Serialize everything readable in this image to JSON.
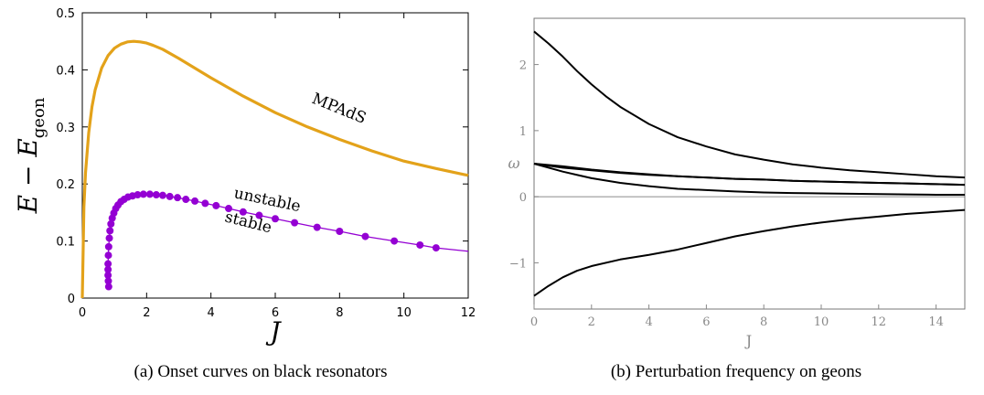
{
  "chart_data": [
    {
      "type": "line",
      "xlabel": "J",
      "ylabel": "E − E_geon",
      "ylabel_main": "E − E",
      "ylabel_sub": "geon",
      "xlim": [
        0,
        12
      ],
      "ylim": [
        0,
        0.5
      ],
      "x_ticks": [
        "0",
        "2",
        "4",
        "6",
        "8",
        "10",
        "12"
      ],
      "y_ticks": [
        "0",
        "0.1",
        "0.2",
        "0.3",
        "0.4",
        "0.5"
      ],
      "grid": false,
      "annotations": [
        "MPAdS",
        "unstable",
        "stable"
      ],
      "colors": {
        "mpads": "#e3a21a",
        "onset": "#9400d3"
      },
      "series": [
        {
          "name": "MPAdS",
          "x": [
            0,
            0.05,
            0.1,
            0.2,
            0.3,
            0.4,
            0.6,
            0.8,
            1.0,
            1.2,
            1.4,
            1.6,
            1.8,
            2.0,
            2.2,
            2.5,
            3.0,
            3.5,
            4.0,
            5.0,
            6.0,
            7.0,
            8.0,
            9.0,
            10.0,
            11.0,
            12.0
          ],
          "y": [
            0,
            0.16,
            0.22,
            0.29,
            0.335,
            0.365,
            0.403,
            0.425,
            0.438,
            0.445,
            0.449,
            0.45,
            0.449,
            0.447,
            0.443,
            0.436,
            0.42,
            0.403,
            0.386,
            0.354,
            0.325,
            0.3,
            0.278,
            0.258,
            0.24,
            0.227,
            0.215
          ]
        },
        {
          "name": "unstable / stable",
          "x": [
            0.82,
            0.81,
            0.8,
            0.8,
            0.8,
            0.81,
            0.82,
            0.84,
            0.86,
            0.89,
            0.93,
            0.98,
            1.04,
            1.11,
            1.2,
            1.3,
            1.42,
            1.56,
            1.72,
            1.9,
            2.1,
            2.3,
            2.5,
            2.72,
            2.96,
            3.22,
            3.5,
            3.82,
            4.16,
            4.55,
            5.0,
            5.5,
            6.0,
            6.6,
            7.3,
            8.0,
            8.8,
            9.7,
            10.5,
            11.0,
            12.0
          ],
          "y": [
            0.02,
            0.03,
            0.04,
            0.05,
            0.06,
            0.075,
            0.09,
            0.105,
            0.118,
            0.13,
            0.14,
            0.149,
            0.157,
            0.163,
            0.169,
            0.173,
            0.177,
            0.179,
            0.181,
            0.182,
            0.182,
            0.181,
            0.18,
            0.178,
            0.176,
            0.173,
            0.17,
            0.166,
            0.162,
            0.157,
            0.151,
            0.145,
            0.139,
            0.132,
            0.124,
            0.117,
            0.108,
            0.1,
            0.093,
            0.088,
            0.082
          ]
        }
      ]
    },
    {
      "type": "line",
      "xlabel": "J",
      "ylabel": "ω",
      "xlim": [
        0,
        15
      ],
      "ylim": [
        -1.7,
        2.7
      ],
      "x_ticks": [
        "0",
        "2",
        "4",
        "6",
        "8",
        "10",
        "12",
        "14"
      ],
      "y_ticks": [
        "−1",
        "0",
        "1",
        "2"
      ],
      "grid": false,
      "series": [
        {
          "x": [
            0,
            0.5,
            1,
            1.5,
            2,
            2.5,
            3,
            4,
            5,
            6,
            7,
            8,
            9,
            10,
            11,
            12,
            13,
            14,
            15
          ],
          "y": [
            2.5,
            2.32,
            2.12,
            1.9,
            1.7,
            1.52,
            1.36,
            1.1,
            0.9,
            0.76,
            0.64,
            0.56,
            0.49,
            0.44,
            0.4,
            0.37,
            0.34,
            0.31,
            0.29
          ]
        },
        {
          "x": [
            0,
            1,
            2,
            3,
            4,
            5,
            6,
            7,
            8,
            9,
            10,
            11,
            12,
            13,
            14,
            15
          ],
          "y": [
            0.5,
            0.44,
            0.4,
            0.36,
            0.33,
            0.31,
            0.29,
            0.27,
            0.26,
            0.24,
            0.23,
            0.22,
            0.21,
            0.2,
            0.19,
            0.18
          ]
        },
        {
          "x": [
            0,
            1,
            2,
            3,
            4,
            5,
            6,
            7,
            8,
            9,
            10,
            11,
            12,
            13,
            14,
            15
          ],
          "y": [
            0.5,
            0.46,
            0.41,
            0.37,
            0.34,
            0.31,
            0.29,
            0.27,
            0.26,
            0.24,
            0.23,
            0.22,
            0.21,
            0.2,
            0.19,
            0.18
          ]
        },
        {
          "x": [
            0,
            1,
            2,
            3,
            4,
            5,
            6,
            7,
            8,
            9,
            10,
            11,
            12,
            13,
            14,
            15
          ],
          "y": [
            0.5,
            0.38,
            0.28,
            0.21,
            0.16,
            0.12,
            0.1,
            0.08,
            0.065,
            0.055,
            0.05,
            0.045,
            0.04,
            0.035,
            0.03,
            0.03
          ]
        },
        {
          "x": [
            0,
            0.5,
            1,
            1.5,
            2,
            3,
            4,
            5,
            6,
            7,
            8,
            9,
            10,
            11,
            12,
            13,
            14,
            15
          ],
          "y": [
            -1.5,
            -1.35,
            -1.22,
            -1.12,
            -1.05,
            -0.95,
            -0.88,
            -0.8,
            -0.7,
            -0.6,
            -0.52,
            -0.45,
            -0.39,
            -0.34,
            -0.3,
            -0.26,
            -0.23,
            -0.2
          ]
        }
      ]
    }
  ],
  "captions": {
    "a": "(a) Onset curves on black resonators",
    "b": "(b) Perturbation frequency on geons"
  }
}
